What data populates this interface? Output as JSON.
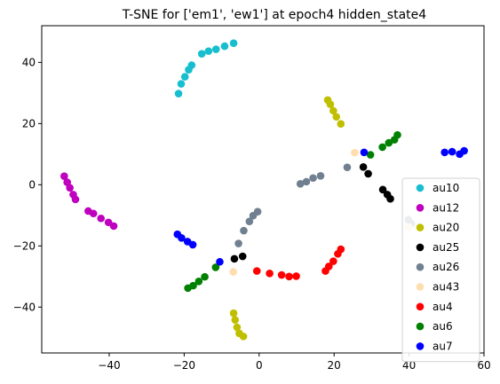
{
  "chart_data": {
    "type": "scatter",
    "title": "T-SNE for ['em1', 'ew1'] at epoch4 hidden_state4",
    "xlabel": "",
    "ylabel": "",
    "xlim": [
      -58,
      60
    ],
    "ylim": [
      -55,
      52
    ],
    "xticks": [
      -40,
      -20,
      0,
      20,
      40,
      60
    ],
    "yticks": [
      -40,
      -20,
      0,
      20,
      40
    ],
    "grid": false,
    "legend_position": "lower-right",
    "series": [
      {
        "name": "au10",
        "color": "#17becf",
        "points": [
          [
            -21.5,
            29.8
          ],
          [
            -20.8,
            33.0
          ],
          [
            -19.8,
            35.3
          ],
          [
            -18.8,
            37.6
          ],
          [
            -18.0,
            39.1
          ],
          [
            -15.3,
            42.8
          ],
          [
            -13.5,
            43.7
          ],
          [
            -11.5,
            44.3
          ],
          [
            -9.2,
            45.3
          ],
          [
            -6.8,
            46.3
          ]
        ]
      },
      {
        "name": "au12",
        "color": "#bf00bf",
        "points": [
          [
            -52.0,
            2.8
          ],
          [
            -51.2,
            0.8
          ],
          [
            -50.5,
            -1.0
          ],
          [
            -49.6,
            -3.2
          ],
          [
            -49.0,
            -4.8
          ],
          [
            -45.6,
            -8.6
          ],
          [
            -44.2,
            -9.4
          ],
          [
            -42.2,
            -11.0
          ],
          [
            -40.2,
            -12.3
          ],
          [
            -38.8,
            -13.5
          ]
        ]
      },
      {
        "name": "au20",
        "color": "#bfbf00",
        "points": [
          [
            18.3,
            27.7
          ],
          [
            19.0,
            26.3
          ],
          [
            19.8,
            24.2
          ],
          [
            20.6,
            22.2
          ],
          [
            21.8,
            19.9
          ],
          [
            -6.8,
            -42.0
          ],
          [
            -6.4,
            -44.2
          ],
          [
            -5.9,
            -46.6
          ],
          [
            -5.3,
            -48.6
          ],
          [
            -4.2,
            -49.6
          ]
        ]
      },
      {
        "name": "au25",
        "color": "#000000",
        "points": [
          [
            27.8,
            5.8
          ],
          [
            29.1,
            3.6
          ],
          [
            33.0,
            -1.6
          ],
          [
            34.2,
            -3.2
          ],
          [
            35.0,
            -4.6
          ],
          [
            -6.6,
            -24.2
          ],
          [
            -4.4,
            -23.4
          ]
        ]
      },
      {
        "name": "au26",
        "color": "#708090",
        "points": [
          [
            11.0,
            0.3
          ],
          [
            12.6,
            1.0
          ],
          [
            14.4,
            2.2
          ],
          [
            16.4,
            2.9
          ],
          [
            23.5,
            5.7
          ],
          [
            -5.5,
            -19.2
          ],
          [
            -4.1,
            -15.0
          ],
          [
            -2.6,
            -12.0
          ],
          [
            -1.6,
            -10.1
          ],
          [
            -0.4,
            -8.8
          ],
          [
            39.8,
            -11.4
          ],
          [
            40.6,
            -12.7
          ]
        ]
      },
      {
        "name": "au43",
        "color": "#ffdead",
        "points": [
          [
            25.5,
            10.5
          ],
          [
            -6.9,
            -28.5
          ],
          [
            40.0,
            -13.8
          ]
        ]
      },
      {
        "name": "au4",
        "color": "#ff0000",
        "points": [
          [
            -0.6,
            -28.2
          ],
          [
            2.8,
            -29.0
          ],
          [
            6.0,
            -29.5
          ],
          [
            8.0,
            -30.0
          ],
          [
            9.9,
            -29.9
          ],
          [
            17.7,
            -28.2
          ],
          [
            18.6,
            -26.7
          ],
          [
            19.8,
            -25.0
          ],
          [
            21.0,
            -22.6
          ],
          [
            21.8,
            -21.1
          ]
        ]
      },
      {
        "name": "au6",
        "color": "#008000",
        "points": [
          [
            -19.0,
            -33.8
          ],
          [
            -17.6,
            -33.0
          ],
          [
            -16.1,
            -31.6
          ],
          [
            -14.5,
            -30.1
          ],
          [
            -11.6,
            -27.0
          ],
          [
            29.7,
            9.8
          ],
          [
            32.9,
            12.3
          ],
          [
            34.6,
            13.7
          ],
          [
            36.1,
            14.7
          ],
          [
            36.9,
            16.3
          ]
        ]
      },
      {
        "name": "au7",
        "color": "#0000ff",
        "points": [
          [
            -21.8,
            -16.2
          ],
          [
            -20.7,
            -17.4
          ],
          [
            -19.1,
            -18.6
          ],
          [
            -17.7,
            -19.6
          ],
          [
            -10.5,
            -25.2
          ],
          [
            28.0,
            10.6
          ],
          [
            49.5,
            10.6
          ],
          [
            51.5,
            10.8
          ],
          [
            53.5,
            10.0
          ],
          [
            54.7,
            11.1
          ]
        ]
      }
    ]
  }
}
